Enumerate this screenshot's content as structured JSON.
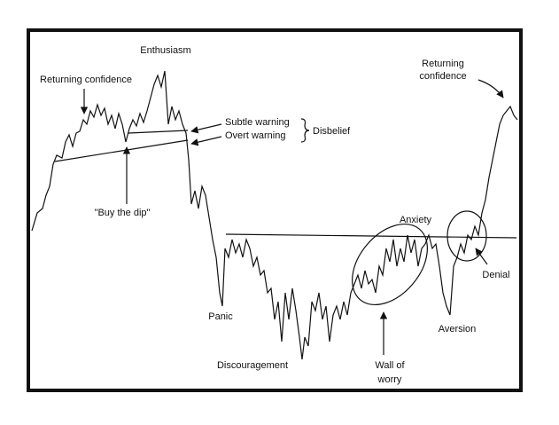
{
  "labels": {
    "enthusiasm": "Enthusiasm",
    "returning_confidence_left": "Returning confidence",
    "subtle_warning": "Subtle warning",
    "overt_warning": "Overt warning",
    "disbelief": "Disbelief",
    "buy_the_dip": "\"Buy the dip\"",
    "anxiety": "Anxiety",
    "returning_confidence_right": [
      "Returning",
      "confidence"
    ],
    "denial": "Denial",
    "panic": "Panic",
    "aversion": "Aversion",
    "discouragement": "Discouragement",
    "wall_of_worry": [
      "Wall of",
      "worry"
    ]
  }
}
